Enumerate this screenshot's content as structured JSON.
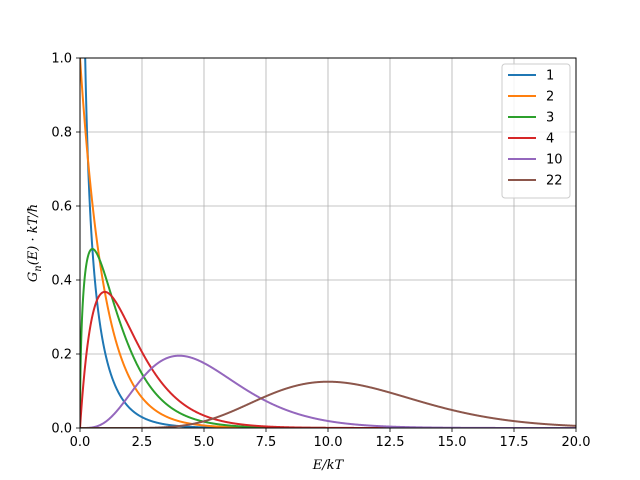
{
  "chart_data": {
    "type": "line",
    "xlabel": "E/kT",
    "ylabel": "G_n(E)·kT/ħ",
    "xlim": [
      0,
      20
    ],
    "ylim": [
      0,
      1
    ],
    "grid": true,
    "legend_position": "top-right",
    "x_ticks": [
      "0.0",
      "2.5",
      "5.0",
      "7.5",
      "10.0",
      "12.5",
      "15.0",
      "17.5",
      "20.0"
    ],
    "y_ticks": [
      "0.0",
      "0.2",
      "0.4",
      "0.6",
      "0.8",
      "1.0"
    ],
    "function": "G_n(x) = x^(n/2 - 1) e^(-x) / Γ(n/2)",
    "series": [
      {
        "name": "1",
        "n": 1,
        "color": "#1f77b4"
      },
      {
        "name": "2",
        "n": 2,
        "color": "#ff7f0e"
      },
      {
        "name": "3",
        "n": 3,
        "color": "#2ca02c"
      },
      {
        "name": "4",
        "n": 4,
        "color": "#d62728"
      },
      {
        "name": "10",
        "n": 10,
        "color": "#9467bd"
      },
      {
        "name": "22",
        "n": 22,
        "color": "#8c564b"
      }
    ]
  }
}
